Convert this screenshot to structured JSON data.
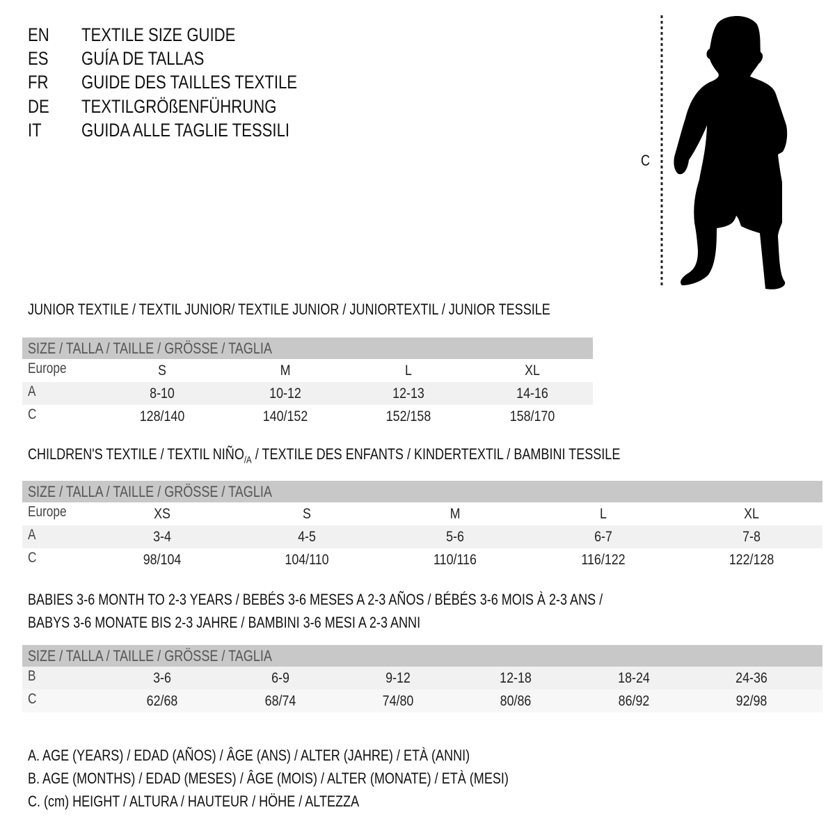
{
  "languages": [
    {
      "code": "EN",
      "text": "TEXTILE SIZE GUIDE"
    },
    {
      "code": "ES",
      "text": "GUÍA DE TALLAS"
    },
    {
      "code": "FR",
      "text": "GUIDE DES TAILLES TEXTILE"
    },
    {
      "code": "DE",
      "text": "TEXTILGRÖßENFÜHRUNG"
    },
    {
      "code": "IT",
      "text": "GUIDA ALLE TAGLIE TESSILI"
    }
  ],
  "figure": {
    "measure_label": "C",
    "icon": "child-silhouette"
  },
  "colors": {
    "header_bg": "#c8c8c8",
    "stripe_bg": "#f1f1f1"
  },
  "junior": {
    "title": "JUNIOR TEXTILE / TEXTIL JUNIOR/ TEXTILE JUNIOR / JUNIORTEXTIL / JUNIOR TESSILE",
    "header": "SIZE / TALLA / TAILLE / GRÖSSE / TAGLIA",
    "rows": [
      {
        "label": "Europe",
        "values": [
          "S",
          "M",
          "L",
          "XL"
        ]
      },
      {
        "label": "A",
        "values": [
          "8-10",
          "10-12",
          "12-13",
          "14-16"
        ]
      },
      {
        "label": "C",
        "values": [
          "128/140",
          "140/152",
          "152/158",
          "158/170"
        ]
      }
    ]
  },
  "children": {
    "title": "CHILDREN'S TEXTILE / TEXTIL NIÑO",
    "title_sub": "/A",
    "title_rest": " / TEXTILE DES ENFANTS / KINDERTEXTIL / BAMBINI TESSILE",
    "header": "SIZE / TALLA / TAILLE / GRÖSSE / TAGLIA",
    "rows": [
      {
        "label": "Europe",
        "values": [
          "XS",
          "S",
          "M",
          "L",
          "XL"
        ]
      },
      {
        "label": "A",
        "values": [
          "3-4",
          "4-5",
          "5-6",
          "6-7",
          "7-8"
        ]
      },
      {
        "label": "C",
        "values": [
          "98/104",
          "104/110",
          "110/116",
          "116/122",
          "122/128"
        ]
      }
    ]
  },
  "babies": {
    "title_line1": "BABIES 3-6 MONTH TO 2-3 YEARS / BEBÉS 3-6 MESES A 2-3 AÑOS / BÉBÉS 3-6 MOIS À 2-3 ANS /",
    "title_line2": "BABYS 3-6 MONATE BIS 2-3 JAHRE / BAMBINI 3-6 MESI A 2-3 ANNI",
    "header": "SIZE / TALLA / TAILLE / GRÖSSE / TAGLIA",
    "rows": [
      {
        "label": "B",
        "values": [
          "3-6",
          "6-9",
          "9-12",
          "12-18",
          "18-24",
          "24-36"
        ]
      },
      {
        "label": "C",
        "values": [
          "62/68",
          "68/74",
          "74/80",
          "80/86",
          "86/92",
          "92/98"
        ]
      }
    ]
  },
  "legend": [
    "A. AGE (YEARS) / EDAD (AÑOS) / ÂGE (ANS) / ALTER (JAHRE) / ETÀ (ANNI)",
    "B. AGE (MONTHS) / EDAD (MESES) / ÂGE (MOIS) / ALTER (MONATE) / ETÀ (MESI)",
    "C. (cm) HEIGHT / ALTURA / HAUTEUR / HÖHE / ALTEZZA"
  ]
}
